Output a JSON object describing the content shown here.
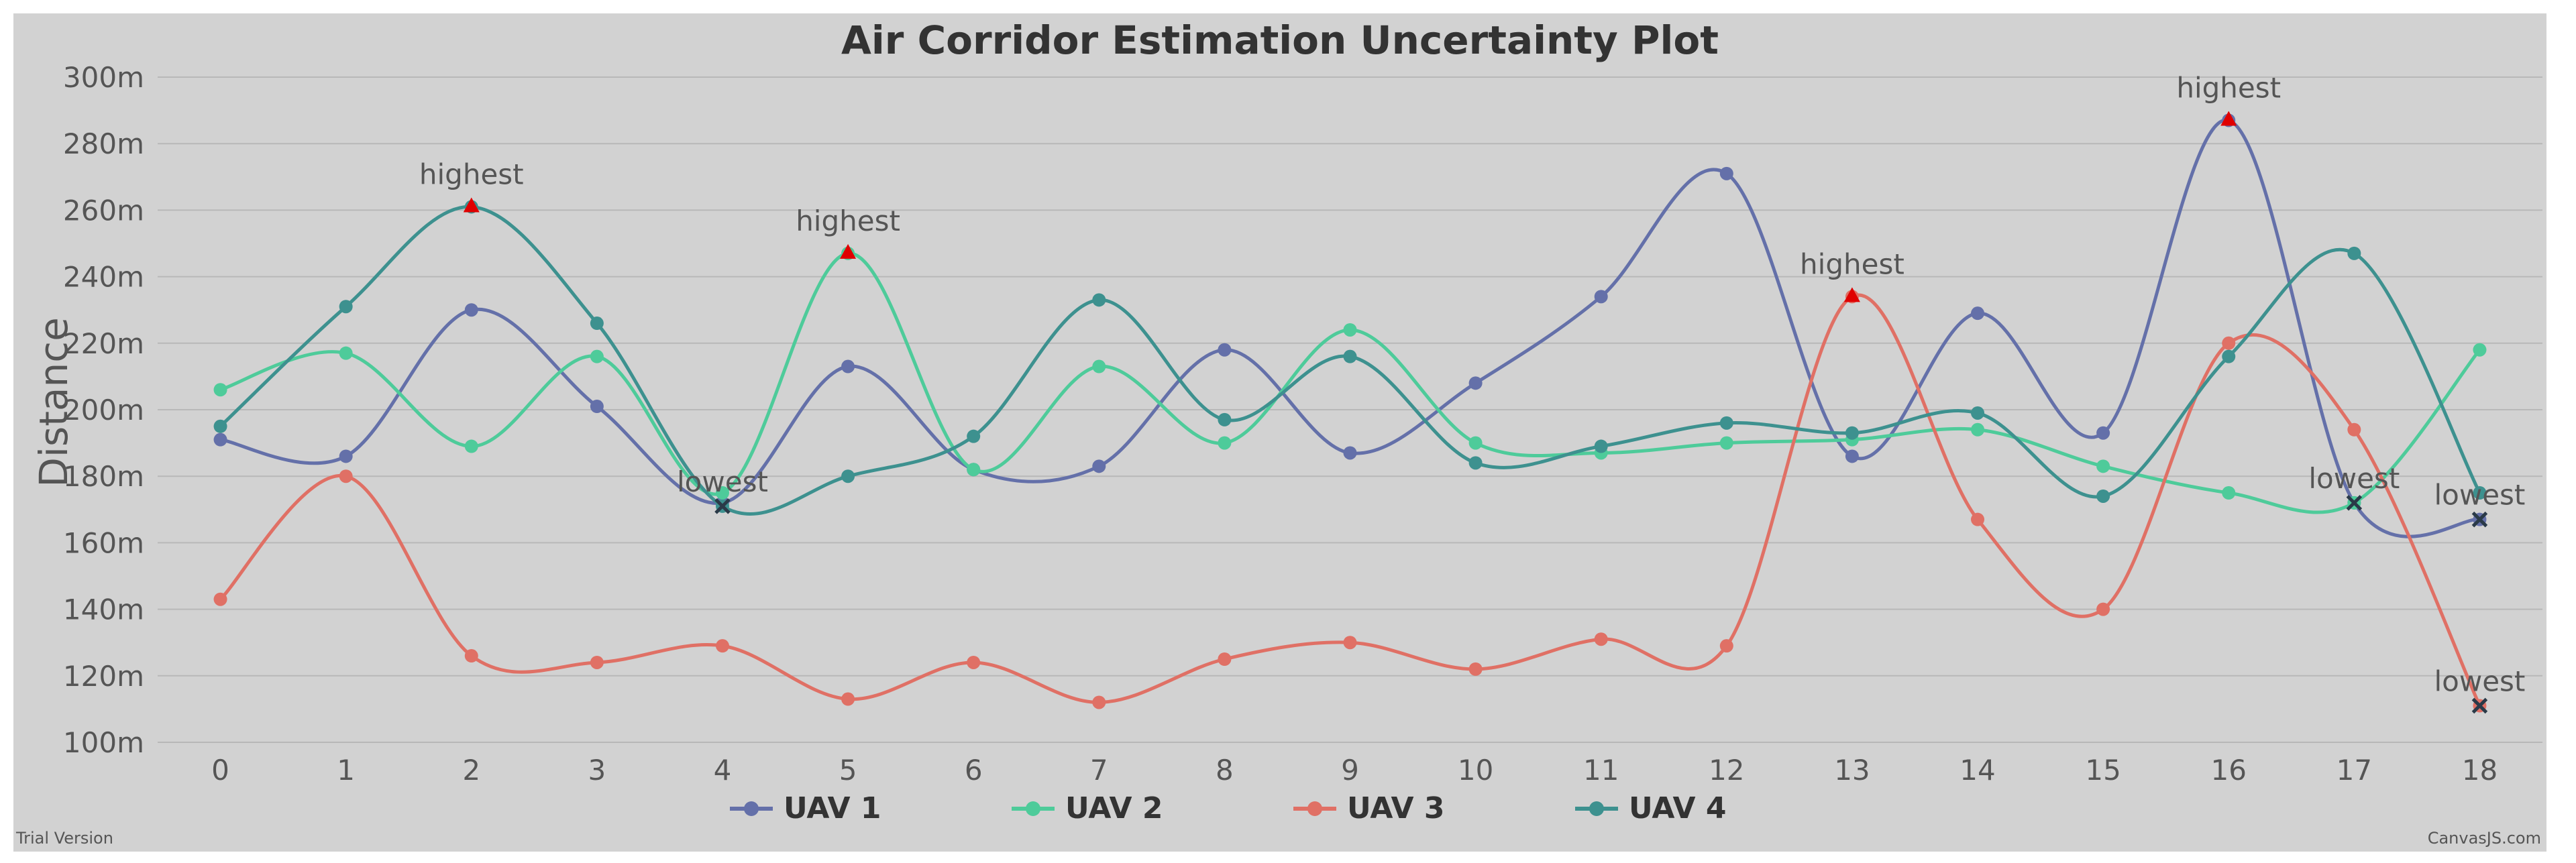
{
  "chart_data": {
    "type": "line",
    "title": "Air Corridor Estimation Uncertainty Plot",
    "xlabel": "",
    "ylabel": "Distance",
    "ylim": [
      100,
      300
    ],
    "y_interval": 20,
    "y_suffix": "m",
    "xlim": [
      -0.5,
      18.5
    ],
    "x": [
      0,
      1,
      2,
      3,
      4,
      5,
      6,
      7,
      8,
      9,
      10,
      11,
      12,
      13,
      14,
      15,
      16,
      17,
      18
    ],
    "grid": "horizontal",
    "legend_position": "bottom-center",
    "series": [
      {
        "name": "UAV 1",
        "color": "#6470a9",
        "values": [
          191,
          186,
          230,
          201,
          172,
          213,
          182,
          183,
          218,
          187,
          208,
          234,
          271,
          186,
          229,
          193,
          287,
          172,
          167
        ]
      },
      {
        "name": "UAV 2",
        "color": "#4ecb9a",
        "values": [
          206,
          217,
          189,
          216,
          175,
          247,
          182,
          213,
          190,
          224,
          190,
          187,
          190,
          191,
          194,
          183,
          175,
          172,
          218
        ]
      },
      {
        "name": "UAV 3",
        "color": "#e07065",
        "values": [
          143,
          180,
          126,
          124,
          129,
          113,
          124,
          112,
          125,
          130,
          122,
          131,
          129,
          234,
          167,
          140,
          220,
          194,
          111
        ]
      },
      {
        "name": "UAV 4",
        "color": "#3d918f",
        "values": [
          195,
          231,
          261,
          226,
          171,
          180,
          192,
          233,
          197,
          216,
          184,
          189,
          196,
          193,
          199,
          174,
          216,
          247,
          175
        ]
      }
    ],
    "annotations": [
      {
        "label": "highest",
        "x": 2,
        "y": 261,
        "marker": "triangle"
      },
      {
        "label": "highest",
        "x": 5,
        "y": 247,
        "marker": "triangle"
      },
      {
        "label": "highest",
        "x": 13,
        "y": 234,
        "marker": "triangle"
      },
      {
        "label": "highest",
        "x": 16,
        "y": 287,
        "marker": "triangle"
      },
      {
        "label": "lowest",
        "x": 4,
        "y": 171,
        "marker": "cross"
      },
      {
        "label": "lowest",
        "x": 17,
        "y": 172,
        "marker": "cross"
      },
      {
        "label": "lowest",
        "x": 18,
        "y": 167,
        "marker": "cross"
      },
      {
        "label": "lowest",
        "x": 18,
        "y": 111,
        "marker": "cross"
      }
    ]
  },
  "footer": {
    "left_text": "Trial Version",
    "right_text": "CanvasJS.com"
  },
  "colors": {
    "background": "#d2d2d2",
    "gridline": "#b8b8b8",
    "highest_marker": "#e00000",
    "lowest_marker": "#2a3a48"
  }
}
